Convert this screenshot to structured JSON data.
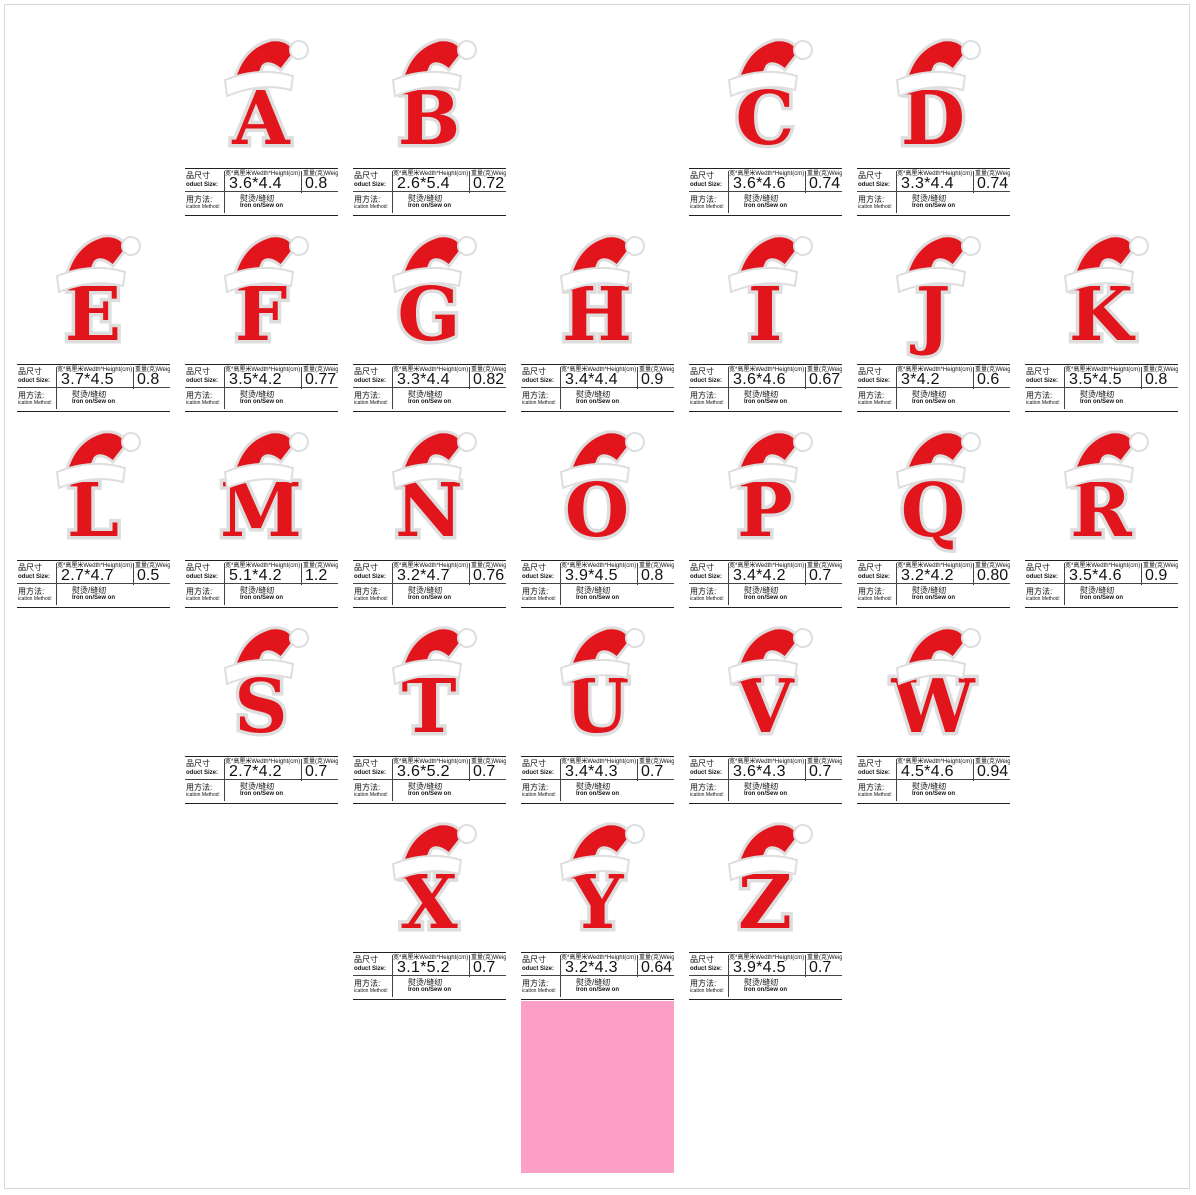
{
  "labels": {
    "size_row": "品尺寸",
    "size_row_en": "oduct Size:",
    "header": "宽*高厘米Wedth*Height(cm)",
    "weight_header": "重量(克)Weig",
    "method_row": "用方法:",
    "method_row_en": "ication Method:",
    "method_cn": "熨烫/缝纫",
    "method_en": "Iron on/Sew on"
  },
  "colors": {
    "patch_red": "#e2141c",
    "patch_white": "#ffffff",
    "outline": "#dedede",
    "swatch": "#fda0c8"
  },
  "patches": [
    {
      "letter": "A",
      "size": "3.6*4.4",
      "weight": "0.8"
    },
    {
      "letter": "B",
      "size": "2.6*5.4",
      "weight": "0.72"
    },
    {
      "letter": "C",
      "size": "3.6*4.6",
      "weight": "0.74"
    },
    {
      "letter": "D",
      "size": "3.3*4.4",
      "weight": "0.74"
    },
    {
      "letter": "E",
      "size": "3.7*4.5",
      "weight": "0.8"
    },
    {
      "letter": "F",
      "size": "3.5*4.2",
      "weight": "0.77"
    },
    {
      "letter": "G",
      "size": "3.3*4.4",
      "weight": "0.82"
    },
    {
      "letter": "H",
      "size": "3.4*4.4",
      "weight": "0.9"
    },
    {
      "letter": "I",
      "size": "3.6*4.6",
      "weight": "0.67"
    },
    {
      "letter": "J",
      "size": "3*4.2",
      "weight": "0.6"
    },
    {
      "letter": "K",
      "size": "3.5*4.5",
      "weight": "0.8"
    },
    {
      "letter": "L",
      "size": "2.7*4.7",
      "weight": "0.5"
    },
    {
      "letter": "M",
      "size": "5.1*4.2",
      "weight": "1.2"
    },
    {
      "letter": "N",
      "size": "3.2*4.7",
      "weight": "0.76"
    },
    {
      "letter": "O",
      "size": "3.9*4.5",
      "weight": "0.8"
    },
    {
      "letter": "P",
      "size": "3.4*4.2",
      "weight": "0.7"
    },
    {
      "letter": "Q",
      "size": "3.2*4.2",
      "weight": "0.80"
    },
    {
      "letter": "R",
      "size": "3.5*4.6",
      "weight": "0.9"
    },
    {
      "letter": "S",
      "size": "2.7*4.2",
      "weight": "0.7"
    },
    {
      "letter": "T",
      "size": "3.6*5.2",
      "weight": "0.7"
    },
    {
      "letter": "U",
      "size": "3.4*4.3",
      "weight": "0.7"
    },
    {
      "letter": "V",
      "size": "3.6*4.3",
      "weight": "0.7"
    },
    {
      "letter": "W",
      "size": "4.5*4.6",
      "weight": "0.94"
    },
    {
      "letter": "X",
      "size": "3.1*5.2",
      "weight": "0.7"
    },
    {
      "letter": "Y",
      "size": "3.2*4.3",
      "weight": "0.64"
    },
    {
      "letter": "Z",
      "size": "3.9*4.5",
      "weight": "0.7"
    }
  ]
}
